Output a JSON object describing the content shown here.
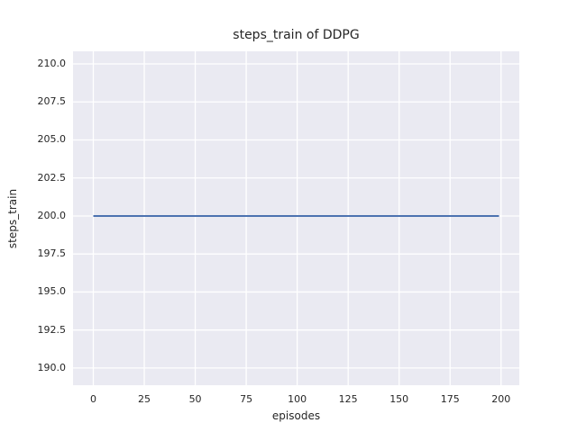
{
  "chart_data": {
    "type": "line",
    "title": "steps_train of DDPG",
    "xlabel": "episodes",
    "ylabel": "steps_train",
    "x_ticks": [
      0,
      25,
      50,
      75,
      100,
      125,
      150,
      175,
      200
    ],
    "x_tick_labels": [
      "0",
      "25",
      "50",
      "75",
      "100",
      "125",
      "150",
      "175",
      "200"
    ],
    "y_ticks": [
      190.0,
      192.5,
      195.0,
      197.5,
      200.0,
      202.5,
      205.0,
      207.5,
      210.0
    ],
    "y_tick_labels": [
      "190.0",
      "192.5",
      "195.0",
      "197.5",
      "200.0",
      "202.5",
      "205.0",
      "207.5",
      "210.0"
    ],
    "xlim": [
      -9.95,
      208.95
    ],
    "ylim": [
      188.87,
      210.83
    ],
    "grid": true,
    "legend": "none",
    "series": [
      {
        "name": "steps_train",
        "color": "#4c72b0",
        "x": [
          0,
          199
        ],
        "y": [
          200,
          200
        ],
        "constant_value": 200
      }
    ],
    "colors": {
      "figure_background": "#ffffff",
      "axes_background": "#eaeaf2",
      "gridline": "#ffffff",
      "text": "#262626",
      "line": "#4c72b0"
    }
  }
}
